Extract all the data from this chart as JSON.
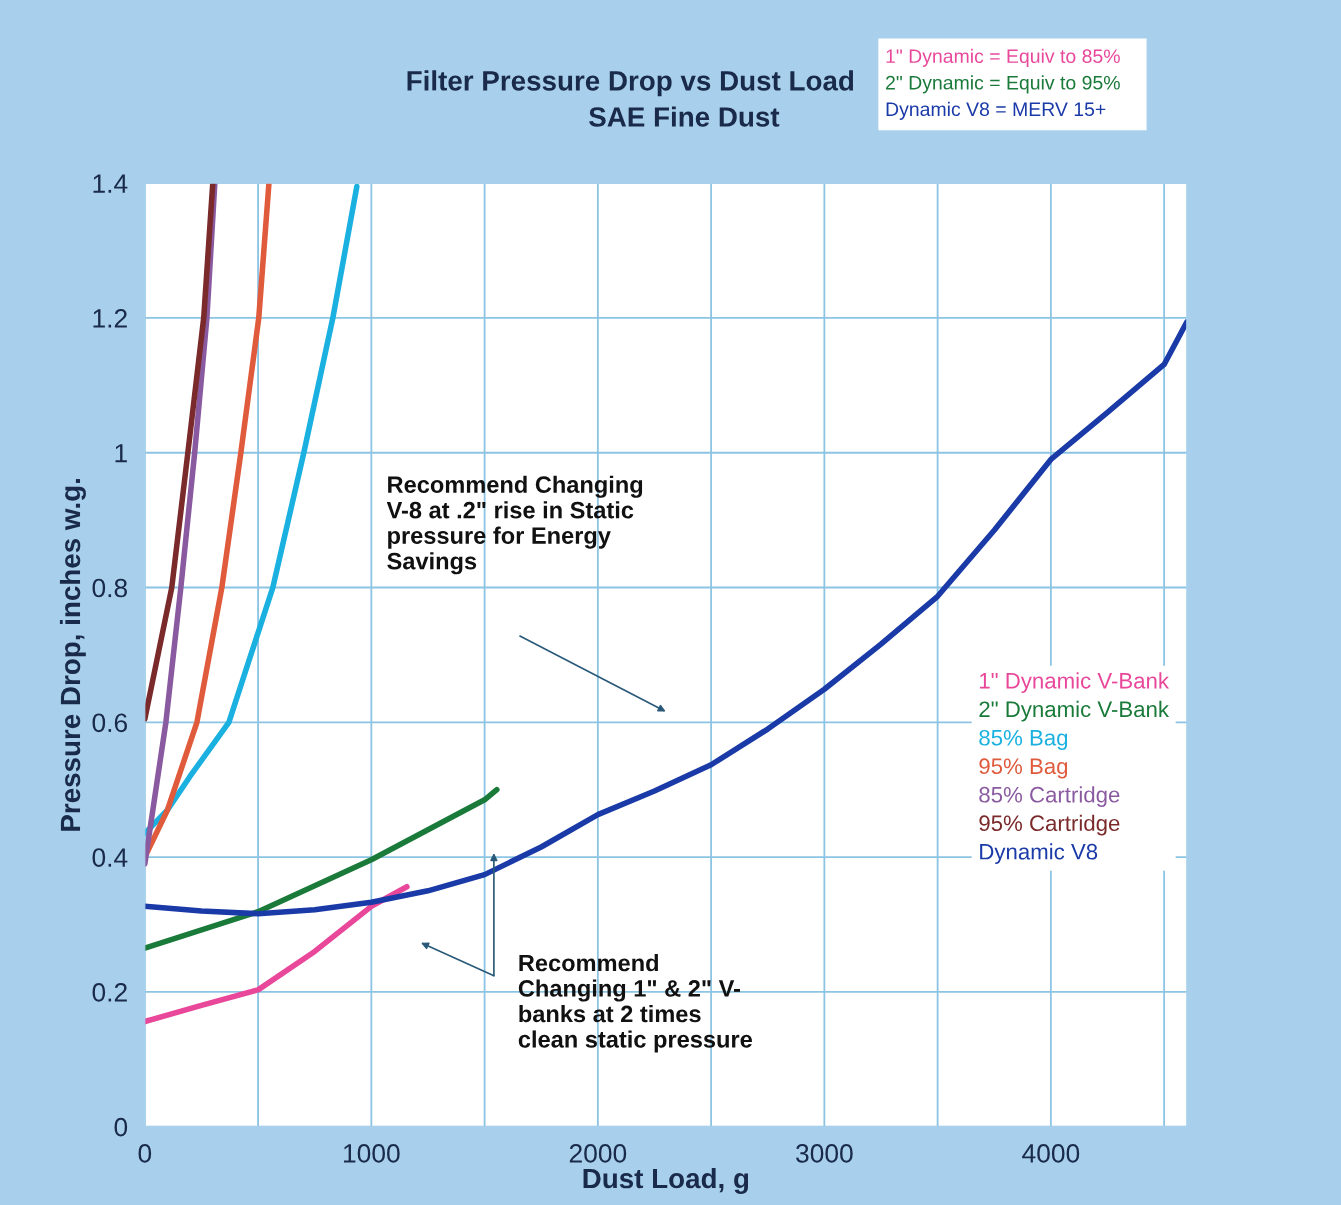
{
  "chart_data": {
    "type": "line",
    "title": "Filter Pressure Drop vs Dust Load",
    "subtitle": "SAE Fine Dust",
    "xlabel": "Dust Load, g",
    "ylabel": "Pressure Drop, inches w.g.",
    "xlim": [
      0,
      4600
    ],
    "ylim": [
      0,
      1.4
    ],
    "xticks": [
      0,
      {
        "value": 500,
        "label": null
      },
      1000,
      {
        "value": 1500,
        "label": null
      },
      2000,
      {
        "value": 2500,
        "label": null
      },
      3000,
      {
        "value": 3500,
        "label": null
      },
      4000,
      {
        "value": 4500,
        "label": null
      }
    ],
    "yticks": [
      0,
      0.2,
      0.4,
      0.6,
      0.8,
      1,
      1.2,
      1.4
    ],
    "grid": true,
    "legend": "right",
    "marker": "none",
    "line_style": "solid",
    "series": [
      {
        "name": "1\" Dynamic V-Bank",
        "color": "#e8479a",
        "x": [
          0,
          250,
          500,
          750,
          1000,
          1157
        ],
        "values": [
          0.156,
          0.18,
          0.203,
          0.26,
          0.327,
          0.356
        ]
      },
      {
        "name": "2\" Dynamic V-Bank",
        "color": "#1a7a3a",
        "x": [
          0,
          500,
          1000,
          1500,
          1554
        ],
        "values": [
          0.265,
          0.319,
          0.396,
          0.485,
          0.5
        ]
      },
      {
        "name": "85% Bag",
        "color": "#1ab0e0",
        "x": [
          0,
          100,
          200,
          371,
          565,
          702,
          830,
          936
        ],
        "values": [
          0.435,
          0.47,
          0.52,
          0.6,
          0.8,
          1.0,
          1.2,
          1.395
        ]
      },
      {
        "name": "95% Bag",
        "color": "#e05a3c",
        "x": [
          0,
          100,
          230,
          340,
          424,
          503,
          548
        ],
        "values": [
          0.4,
          0.47,
          0.6,
          0.8,
          1.0,
          1.2,
          1.4
        ]
      },
      {
        "name": "85% Cartridge",
        "color": "#8a5aa0",
        "x": [
          0,
          93,
          159,
          220,
          274,
          309
        ],
        "values": [
          0.39,
          0.6,
          0.8,
          1.0,
          1.2,
          1.4
        ]
      },
      {
        "name": "95% Cartridge",
        "color": "#7a2a2a",
        "x": [
          0,
          119,
          190,
          260,
          300
        ],
        "values": [
          0.605,
          0.8,
          1.0,
          1.2,
          1.4
        ]
      },
      {
        "name": "Dynamic V8",
        "color": "#1a3aa8",
        "x": [
          0,
          250,
          500,
          750,
          1000,
          1250,
          1500,
          1750,
          2000,
          2250,
          2500,
          2750,
          3000,
          3250,
          3500,
          3750,
          4000,
          4250,
          4500,
          4600
        ],
        "values": [
          0.327,
          0.32,
          0.316,
          0.322,
          0.333,
          0.35,
          0.374,
          0.415,
          0.463,
          0.498,
          0.537,
          0.59,
          0.649,
          0.716,
          0.787,
          0.885,
          0.99,
          1.06,
          1.131,
          1.194
        ]
      }
    ],
    "annotations": [
      "Recommend Changing\nV-8 at .2\" rise in Static\npressure for Energy\nSavings",
      "Recommend\nChanging 1\" & 2\" V-\nbanks at 2 times\nclean static pressure",
      "1\" Dynamic = Equiv to 85%",
      "2\" Dynamic = Equiv to 95%",
      "Dynamic V8 = MERV 15+"
    ]
  }
}
